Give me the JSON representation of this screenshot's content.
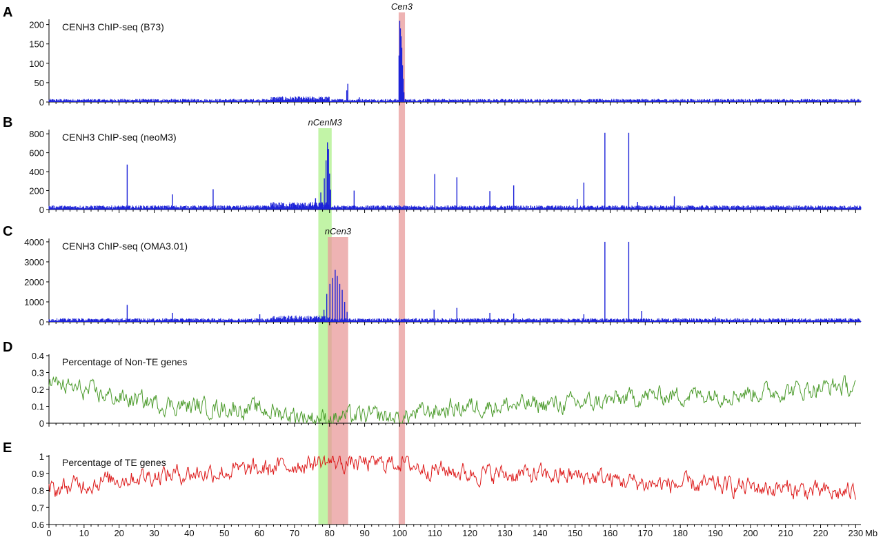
{
  "chart_data": {
    "type": "line",
    "x_axis": {
      "ticks": [
        0,
        10,
        20,
        30,
        40,
        50,
        60,
        70,
        80,
        90,
        100,
        110,
        120,
        130,
        140,
        150,
        160,
        170,
        180,
        190,
        200,
        210,
        220,
        230
      ],
      "tick_labels": [
        "0",
        "10",
        "20",
        "30",
        "40",
        "50",
        "60",
        "70",
        "80",
        "90",
        "100",
        "110",
        "120",
        "130",
        "140",
        "150",
        "160",
        "170",
        "180",
        "190",
        "200",
        "210",
        "220",
        "230"
      ],
      "unit": "Mb",
      "xlim": [
        0,
        231.5
      ]
    },
    "highlights": [
      {
        "label": "Cen3",
        "x0": 99.7,
        "x1": 101.5,
        "color": "#e89a9a",
        "label_panel": 0
      },
      {
        "label": "nCenM3",
        "x0": 76.8,
        "x1": 80.6,
        "color": "#adf08a",
        "label_panel": 1
      },
      {
        "label": "nCen3",
        "x0": 79.5,
        "x1": 85.3,
        "color": "#e89a9a",
        "label_panel": 2
      }
    ],
    "panels": [
      {
        "letter": "A",
        "title": "CENH3 ChIP-seq (B73)",
        "kind": "spikes",
        "color": "#1c22d8",
        "ylim": [
          0,
          210
        ],
        "yticks": [
          0,
          50,
          100,
          150,
          200
        ],
        "ytick_labels": [
          "0",
          "50",
          "100",
          "150",
          "200"
        ],
        "baseline": 4,
        "peaks": [
          {
            "x": 85.2,
            "y": 47
          },
          {
            "x": 84.9,
            "y": 30
          },
          {
            "x": 88.5,
            "y": 12
          },
          {
            "x": 100.0,
            "y": 210
          },
          {
            "x": 100.2,
            "y": 190
          },
          {
            "x": 100.4,
            "y": 170
          },
          {
            "x": 100.6,
            "y": 140
          },
          {
            "x": 100.8,
            "y": 95
          },
          {
            "x": 101.0,
            "y": 60
          },
          {
            "x": 101.2,
            "y": 25
          },
          {
            "x": 99.8,
            "y": 120
          }
        ]
      },
      {
        "letter": "B",
        "title": "CENH3 ChIP-seq (neoM3)",
        "kind": "spikes",
        "color": "#1c22d8",
        "ylim": [
          0,
          830
        ],
        "yticks": [
          0,
          200,
          400,
          600,
          800
        ],
        "ytick_labels": [
          "0",
          "200",
          "400",
          "600",
          "800"
        ],
        "baseline": 22,
        "peaks": [
          {
            "x": 22.3,
            "y": 475
          },
          {
            "x": 35.2,
            "y": 160
          },
          {
            "x": 46.8,
            "y": 215
          },
          {
            "x": 76.0,
            "y": 120
          },
          {
            "x": 77.5,
            "y": 180
          },
          {
            "x": 78.5,
            "y": 330
          },
          {
            "x": 79.0,
            "y": 520
          },
          {
            "x": 79.4,
            "y": 710
          },
          {
            "x": 79.7,
            "y": 640
          },
          {
            "x": 80.0,
            "y": 380
          },
          {
            "x": 80.3,
            "y": 210
          },
          {
            "x": 87.0,
            "y": 200
          },
          {
            "x": 110.0,
            "y": 375
          },
          {
            "x": 116.3,
            "y": 340
          },
          {
            "x": 125.7,
            "y": 195
          },
          {
            "x": 132.5,
            "y": 255
          },
          {
            "x": 150.6,
            "y": 110
          },
          {
            "x": 152.5,
            "y": 285
          },
          {
            "x": 158.5,
            "y": 810
          },
          {
            "x": 165.3,
            "y": 810
          },
          {
            "x": 167.8,
            "y": 80
          },
          {
            "x": 178.3,
            "y": 140
          }
        ]
      },
      {
        "letter": "C",
        "title": "CENH3 ChIP-seq (OMA3.01)",
        "kind": "spikes",
        "color": "#1c22d8",
        "ylim": [
          0,
          4100
        ],
        "yticks": [
          0,
          1000,
          2000,
          3000,
          4000
        ],
        "ytick_labels": [
          "0",
          "1000",
          "2000",
          "3000",
          "4000"
        ],
        "baseline": 90,
        "peaks": [
          {
            "x": 22.3,
            "y": 850
          },
          {
            "x": 35.2,
            "y": 450
          },
          {
            "x": 60.1,
            "y": 380
          },
          {
            "x": 78.4,
            "y": 600
          },
          {
            "x": 79.2,
            "y": 1400
          },
          {
            "x": 80.1,
            "y": 1900
          },
          {
            "x": 80.9,
            "y": 2200
          },
          {
            "x": 81.6,
            "y": 2600
          },
          {
            "x": 82.2,
            "y": 2300
          },
          {
            "x": 82.9,
            "y": 1900
          },
          {
            "x": 83.6,
            "y": 1600
          },
          {
            "x": 84.3,
            "y": 1000
          },
          {
            "x": 85.0,
            "y": 500
          },
          {
            "x": 109.8,
            "y": 600
          },
          {
            "x": 116.3,
            "y": 700
          },
          {
            "x": 125.7,
            "y": 450
          },
          {
            "x": 132.5,
            "y": 420
          },
          {
            "x": 152.5,
            "y": 380
          },
          {
            "x": 158.5,
            "y": 4000
          },
          {
            "x": 165.3,
            "y": 4000
          },
          {
            "x": 169.0,
            "y": 550
          },
          {
            "x": 190.0,
            "y": 250
          }
        ]
      },
      {
        "letter": "D",
        "title": "Percentage of Non-TE genes",
        "kind": "line",
        "color": "#4a9a2a",
        "ylim": [
          0,
          0.4
        ],
        "yticks": [
          0,
          0.1,
          0.2,
          0.3,
          0.4
        ],
        "ytick_labels": [
          "0",
          "0.1",
          "0.2",
          "0.3",
          "0.4"
        ],
        "trend": [
          {
            "x": 0,
            "y": 0.24
          },
          {
            "x": 10,
            "y": 0.19
          },
          {
            "x": 20,
            "y": 0.15
          },
          {
            "x": 30,
            "y": 0.12
          },
          {
            "x": 40,
            "y": 0.1
          },
          {
            "x": 50,
            "y": 0.09
          },
          {
            "x": 60,
            "y": 0.08
          },
          {
            "x": 70,
            "y": 0.05
          },
          {
            "x": 78,
            "y": 0.03
          },
          {
            "x": 85,
            "y": 0.04
          },
          {
            "x": 95,
            "y": 0.04
          },
          {
            "x": 100,
            "y": 0.02
          },
          {
            "x": 105,
            "y": 0.06
          },
          {
            "x": 120,
            "y": 0.1
          },
          {
            "x": 140,
            "y": 0.11
          },
          {
            "x": 155,
            "y": 0.12
          },
          {
            "x": 170,
            "y": 0.16
          },
          {
            "x": 185,
            "y": 0.17
          },
          {
            "x": 200,
            "y": 0.18
          },
          {
            "x": 215,
            "y": 0.2
          },
          {
            "x": 225,
            "y": 0.22
          },
          {
            "x": 231,
            "y": 0.2
          }
        ],
        "noise": 0.05
      },
      {
        "letter": "E",
        "title": "Percentage of TE genes",
        "kind": "line",
        "color": "#dd1a1a",
        "ylim": [
          0.6,
          1.0
        ],
        "yticks": [
          0.6,
          0.7,
          0.8,
          0.9,
          1.0
        ],
        "ytick_labels": [
          "0.6",
          "0.7",
          "0.8",
          "0.9",
          "1"
        ],
        "trend": [
          {
            "x": 0,
            "y": 0.8
          },
          {
            "x": 10,
            "y": 0.84
          },
          {
            "x": 20,
            "y": 0.87
          },
          {
            "x": 30,
            "y": 0.89
          },
          {
            "x": 40,
            "y": 0.9
          },
          {
            "x": 50,
            "y": 0.91
          },
          {
            "x": 60,
            "y": 0.92
          },
          {
            "x": 70,
            "y": 0.95
          },
          {
            "x": 78,
            "y": 0.97
          },
          {
            "x": 85,
            "y": 0.96
          },
          {
            "x": 95,
            "y": 0.96
          },
          {
            "x": 100,
            "y": 0.97
          },
          {
            "x": 105,
            "y": 0.94
          },
          {
            "x": 120,
            "y": 0.9
          },
          {
            "x": 140,
            "y": 0.89
          },
          {
            "x": 155,
            "y": 0.88
          },
          {
            "x": 170,
            "y": 0.84
          },
          {
            "x": 185,
            "y": 0.83
          },
          {
            "x": 200,
            "y": 0.82
          },
          {
            "x": 215,
            "y": 0.8
          },
          {
            "x": 225,
            "y": 0.78
          },
          {
            "x": 231,
            "y": 0.8
          }
        ],
        "noise": 0.05
      }
    ]
  }
}
